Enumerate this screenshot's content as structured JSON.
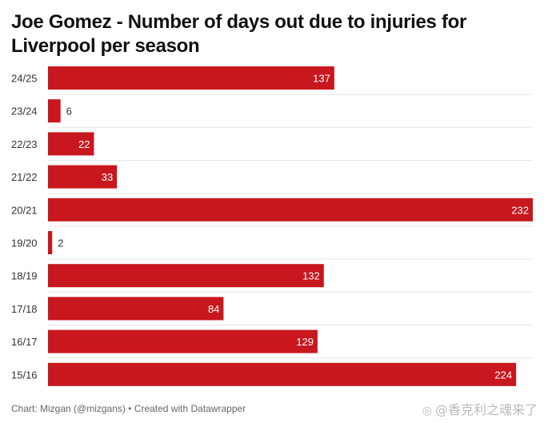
{
  "title": "Joe Gomez - Number of days out due to injuries for Liverpool per season",
  "footer": {
    "credit": "Chart: Mizgan (@mizgans)",
    "separator": "•",
    "created": "Created with Datawrapper"
  },
  "watermark": "@香克利之魂来了",
  "colors": {
    "bar": "#c8171e",
    "gridline": "#e6e6e6",
    "label_inside": "#ffffff",
    "label_outside": "#333333"
  },
  "chart_data": {
    "type": "bar",
    "orientation": "horizontal",
    "title": "Joe Gomez - Number of days out due to injuries for Liverpool per season",
    "categories": [
      "24/25",
      "23/24",
      "22/23",
      "21/22",
      "20/21",
      "19/20",
      "18/19",
      "17/18",
      "16/17",
      "15/16"
    ],
    "values": [
      137,
      6,
      22,
      33,
      232,
      2,
      132,
      84,
      129,
      224
    ],
    "xlim": [
      0,
      232
    ],
    "data_labels": true,
    "grid": false
  }
}
